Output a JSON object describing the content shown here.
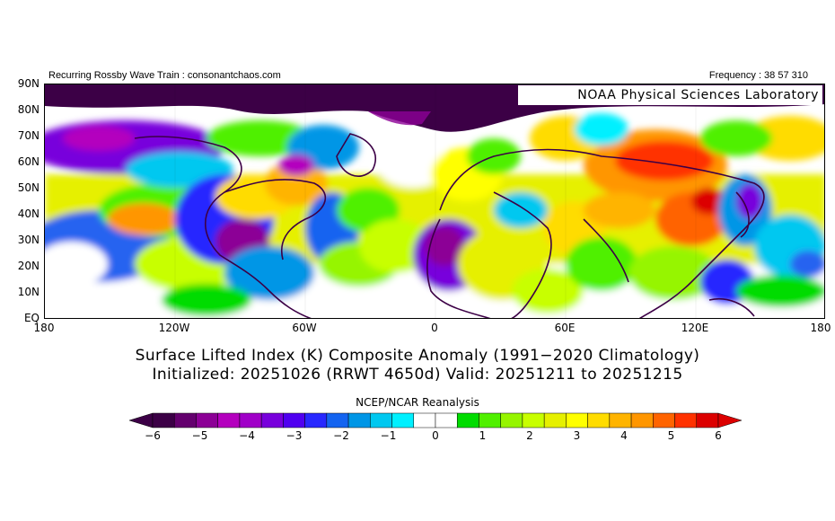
{
  "header": {
    "left_text": "Recurring Rossby Wave Train : consonantchaos.com",
    "right_text": "Frequency : 38 57 310"
  },
  "map": {
    "watermark": "NOAA Physical Sciences Laboratory",
    "lat_labels": [
      "90N",
      "80N",
      "70N",
      "60N",
      "50N",
      "40N",
      "30N",
      "20N",
      "10N",
      "EQ"
    ],
    "lon_labels": [
      "180",
      "120W",
      "60W",
      "0",
      "60E",
      "120E",
      "180"
    ]
  },
  "titles": {
    "line1": "Surface Lifted Index (K) Composite Anomaly (1991−2020 Climatology)",
    "line2": "Initialized: 20251026 (RRWT 4650d) Valid: 20251211 to 20251215"
  },
  "source": "NCEP/NCAR Reanalysis",
  "colorbar": {
    "ticks": [
      "−6",
      "−5",
      "−4",
      "−3",
      "−2",
      "−1",
      "0",
      "1",
      "2",
      "3",
      "4",
      "5",
      "6"
    ],
    "colors": [
      "#3c0046",
      "#64006e",
      "#8c0096",
      "#b400be",
      "#a000c8",
      "#7800dc",
      "#5000f0",
      "#2828ff",
      "#1464f0",
      "#0096e6",
      "#00c8f0",
      "#00f0ff",
      "#ffffff",
      "#ffffff",
      "#00dc00",
      "#50f000",
      "#96f500",
      "#c8ff00",
      "#e6f000",
      "#ffff00",
      "#ffdc00",
      "#ffb400",
      "#ff9600",
      "#ff6400",
      "#ff3200",
      "#dc0000"
    ],
    "low_arrow_color": "#3c0046",
    "high_arrow_color": "#dc0000"
  }
}
